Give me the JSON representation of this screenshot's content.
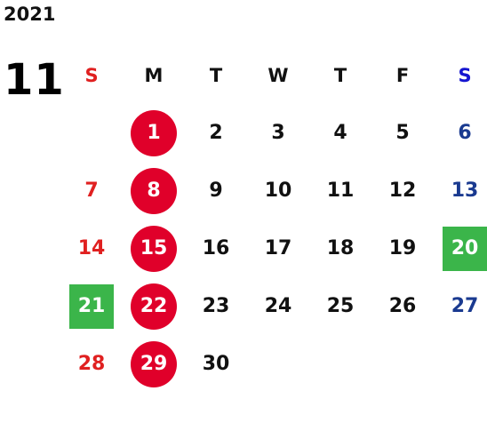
{
  "year": "2021",
  "month": "11",
  "weekdays": [
    "S",
    "M",
    "T",
    "W",
    "T",
    "F",
    "S"
  ],
  "weeks": [
    [
      "",
      "1",
      "2",
      "3",
      "4",
      "5",
      "6"
    ],
    [
      "7",
      "8",
      "9",
      "10",
      "11",
      "12",
      "13"
    ],
    [
      "14",
      "15",
      "16",
      "17",
      "18",
      "19",
      "20"
    ],
    [
      "21",
      "22",
      "23",
      "24",
      "25",
      "26",
      "27"
    ],
    [
      "28",
      "29",
      "30",
      "",
      "",
      "",
      ""
    ]
  ],
  "colors": {
    "sunday_text": "#e02020",
    "saturday_header": "#1515d0",
    "saturday_text": "#1a3a90",
    "circle_marker": "#e0002a",
    "green_marker": "#3bb54a"
  },
  "circled_days": [
    "1",
    "8",
    "15",
    "22",
    "29"
  ],
  "green_days": [
    "20",
    "21"
  ]
}
